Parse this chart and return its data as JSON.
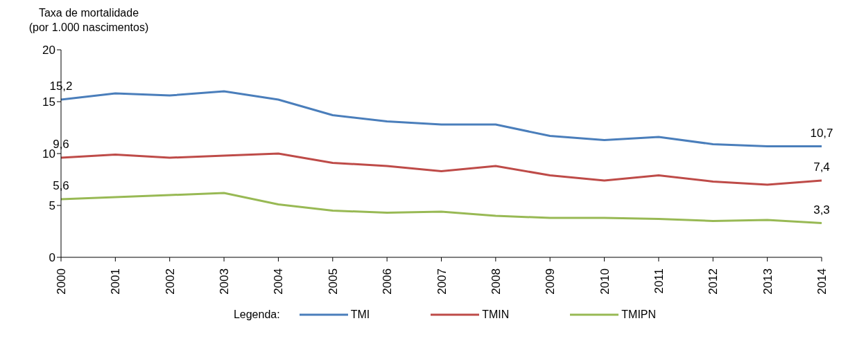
{
  "chart_data": {
    "type": "line",
    "ylabel": "Taxa de mortalidade\n(por 1.000 nascimentos)",
    "legend_title": "Legenda:",
    "legend": "bottom",
    "grid": false,
    "marker": "none",
    "line_style": "solid",
    "categories": [
      "2000",
      "2001",
      "2002",
      "2003",
      "2004",
      "2005",
      "2006",
      "2007",
      "2008",
      "2009",
      "2010",
      "2011",
      "2012",
      "2013",
      "2014"
    ],
    "ylim": [
      0,
      20
    ],
    "yticks": [
      0,
      5,
      10,
      15,
      20
    ],
    "series": [
      {
        "name": "TMI",
        "color": "#4a7ebb",
        "values": [
          15.2,
          15.8,
          15.6,
          16.0,
          15.2,
          13.7,
          13.1,
          12.8,
          12.8,
          11.7,
          11.3,
          11.6,
          10.9,
          10.7,
          10.7
        ],
        "value_labels": [
          "15,2",
          null,
          null,
          null,
          null,
          null,
          null,
          null,
          null,
          null,
          null,
          null,
          null,
          null,
          "10,7"
        ]
      },
      {
        "name": "TMIN",
        "color": "#be4b48",
        "values": [
          9.6,
          9.9,
          9.6,
          9.8,
          10.0,
          9.1,
          8.8,
          8.3,
          8.8,
          7.9,
          7.4,
          7.9,
          7.3,
          7.0,
          7.4
        ],
        "value_labels": [
          "9,6",
          null,
          null,
          null,
          null,
          null,
          null,
          null,
          null,
          null,
          null,
          null,
          null,
          null,
          "7,4"
        ]
      },
      {
        "name": "TMIPN",
        "color": "#98b954",
        "values": [
          5.6,
          5.8,
          6.0,
          6.2,
          5.1,
          4.5,
          4.3,
          4.4,
          4.0,
          3.8,
          3.8,
          3.7,
          3.5,
          3.6,
          3.3
        ],
        "value_labels": [
          "5,6",
          null,
          null,
          null,
          null,
          null,
          null,
          null,
          null,
          null,
          null,
          null,
          null,
          null,
          "3,3"
        ]
      }
    ]
  }
}
